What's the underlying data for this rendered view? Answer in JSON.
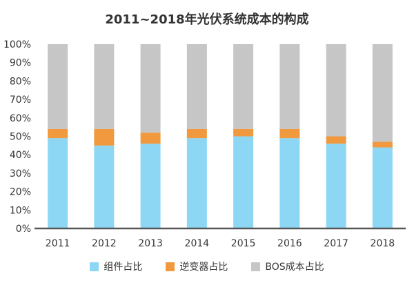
{
  "chart_data": {
    "type": "bar",
    "stacked": true,
    "title": "2011~2018年光伏系统成本的构成",
    "categories": [
      "2011",
      "2012",
      "2013",
      "2014",
      "2015",
      "2016",
      "2017",
      "2018"
    ],
    "series": [
      {
        "name": "组件占比",
        "color": "#8dd7f5",
        "values": [
          49,
          45,
          46,
          49,
          50,
          49,
          46,
          44
        ]
      },
      {
        "name": "逆变器占比",
        "color": "#f0993e",
        "values": [
          5,
          9,
          6,
          5,
          4,
          5,
          4,
          3
        ]
      },
      {
        "name": "BOS成本占比",
        "color": "#c6c6c6",
        "values": [
          46,
          46,
          48,
          46,
          46,
          46,
          50,
          53
        ]
      }
    ],
    "yticks": [
      "0%",
      "10%",
      "20%",
      "30%",
      "40%",
      "50%",
      "60%",
      "70%",
      "80%",
      "90%",
      "100%"
    ],
    "ylim": [
      0,
      100
    ],
    "grid": false,
    "legend_position": "bottom"
  }
}
